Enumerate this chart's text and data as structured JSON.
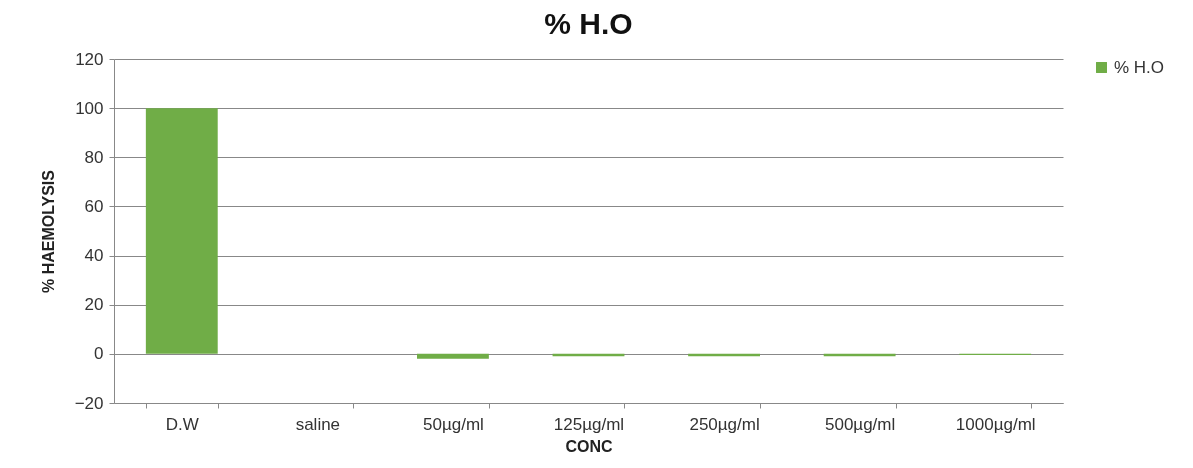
{
  "chart_data": {
    "type": "bar",
    "title": "% H.O",
    "xlabel": "CONC",
    "ylabel": "% HAEMOLYSIS",
    "categories": [
      "D.W",
      "saline",
      "50µg/ml",
      "125µg/ml",
      "250µg/ml",
      "500µg/ml",
      "1000µg/ml"
    ],
    "series": [
      {
        "name": "% H.O",
        "color": "#70ad47",
        "values": [
          100,
          0,
          -2,
          -1,
          -1,
          -1,
          -0.5
        ]
      }
    ],
    "ylim": [
      -20,
      120
    ],
    "yticks": [
      -20,
      0,
      20,
      40,
      60,
      80,
      100,
      120
    ],
    "grid": "y",
    "legend": "right"
  }
}
